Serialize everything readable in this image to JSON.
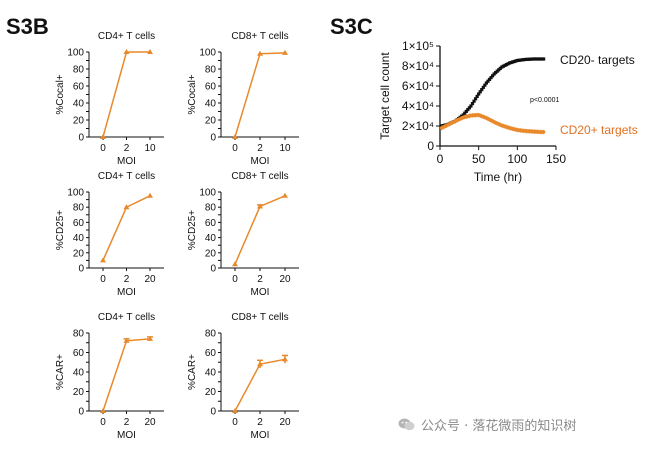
{
  "panel_labels": {
    "b": "S3B",
    "c": "S3C"
  },
  "colors": {
    "orange": "#E8892B",
    "black": "#111111",
    "legend_orange": "#E07020"
  },
  "watermark": {
    "text": "公众号 · 落花微雨的知识树",
    "icon": "wechat-icon"
  },
  "chart_data": [
    {
      "id": "b1",
      "type": "line",
      "title": "CD4+ T cells",
      "xlabel": "MOI",
      "ylabel": "%Cocal+",
      "categories": [
        "0",
        "2",
        "10"
      ],
      "ylim": [
        0,
        100
      ],
      "yticks": [
        0,
        10,
        20,
        30,
        40,
        50,
        60,
        70,
        80,
        90,
        100
      ],
      "series": [
        {
          "values": [
            0,
            100,
            100
          ],
          "errors": [
            0,
            0,
            0
          ]
        }
      ]
    },
    {
      "id": "b2",
      "type": "line",
      "title": "CD8+ T cells",
      "xlabel": "MOI",
      "ylabel": "%Cocal+",
      "categories": [
        "0",
        "2",
        "10"
      ],
      "ylim": [
        0,
        100
      ],
      "yticks": [
        0,
        10,
        20,
        30,
        40,
        50,
        60,
        70,
        80,
        90,
        100
      ],
      "series": [
        {
          "values": [
            0,
            98,
            99
          ],
          "errors": [
            0,
            0,
            0
          ]
        }
      ]
    },
    {
      "id": "b3",
      "type": "line",
      "title": "CD4+ T cells",
      "xlabel": "MOI",
      "ylabel": "%CD25+",
      "categories": [
        "0",
        "2",
        "20"
      ],
      "ylim": [
        0,
        100
      ],
      "yticks": [
        0,
        10,
        20,
        30,
        40,
        50,
        60,
        70,
        80,
        90,
        100
      ],
      "series": [
        {
          "values": [
            10,
            80,
            95
          ],
          "errors": [
            0,
            0,
            0
          ]
        }
      ]
    },
    {
      "id": "b4",
      "type": "line",
      "title": "CD8+ T cells",
      "xlabel": "MOI",
      "ylabel": "%CD25+",
      "categories": [
        "0",
        "2",
        "20"
      ],
      "ylim": [
        0,
        100
      ],
      "yticks": [
        0,
        10,
        20,
        30,
        40,
        50,
        60,
        70,
        80,
        90,
        100
      ],
      "series": [
        {
          "values": [
            5,
            81,
            95
          ],
          "errors": [
            0,
            2,
            0
          ]
        }
      ]
    },
    {
      "id": "b5",
      "type": "line",
      "title": "CD4+ T cells",
      "xlabel": "MOI",
      "ylabel": "%CAR+",
      "categories": [
        "0",
        "2",
        "20"
      ],
      "ylim": [
        0,
        80
      ],
      "yticks": [
        0,
        10,
        20,
        30,
        40,
        50,
        60,
        70,
        80
      ],
      "series": [
        {
          "values": [
            0,
            72,
            74
          ],
          "errors": [
            0,
            2,
            2
          ]
        }
      ]
    },
    {
      "id": "b6",
      "type": "line",
      "title": "CD8+ T cells",
      "xlabel": "MOI",
      "ylabel": "%CAR+",
      "categories": [
        "0",
        "2",
        "20"
      ],
      "ylim": [
        0,
        80
      ],
      "yticks": [
        0,
        10,
        20,
        30,
        40,
        50,
        60,
        70,
        80
      ],
      "series": [
        {
          "values": [
            0,
            48,
            53
          ],
          "errors": [
            0,
            4,
            4
          ]
        }
      ]
    },
    {
      "id": "c",
      "type": "scatter",
      "xlabel": "Time (hr)",
      "ylabel": "Target cell count",
      "xlim": [
        0,
        150
      ],
      "ylim": [
        0,
        100000
      ],
      "xticks": [
        0,
        50,
        100,
        150
      ],
      "yticks": [
        0,
        20000,
        40000,
        60000,
        80000,
        100000
      ],
      "yticklabels": [
        "0",
        "2×10⁴",
        "4×10⁴",
        "6×10⁴",
        "8×10⁴",
        "1×10⁵"
      ],
      "annotation": "p<0.0001",
      "series": [
        {
          "name": "CD20- targets",
          "x": [
            2,
            10,
            20,
            30,
            40,
            50,
            60,
            70,
            80,
            90,
            100,
            110,
            120,
            130,
            135
          ],
          "y": [
            20000,
            21500,
            25000,
            31000,
            40000,
            52000,
            63000,
            72000,
            79000,
            83000,
            85500,
            86500,
            87000,
            87000,
            87000
          ]
        },
        {
          "name": "CD20+ targets",
          "x": [
            2,
            10,
            20,
            30,
            40,
            50,
            60,
            70,
            80,
            90,
            100,
            110,
            120,
            130,
            135
          ],
          "y": [
            18000,
            21000,
            25000,
            28500,
            30500,
            31000,
            28000,
            24000,
            20500,
            18000,
            16000,
            15000,
            14500,
            14000,
            14000
          ]
        }
      ]
    }
  ]
}
